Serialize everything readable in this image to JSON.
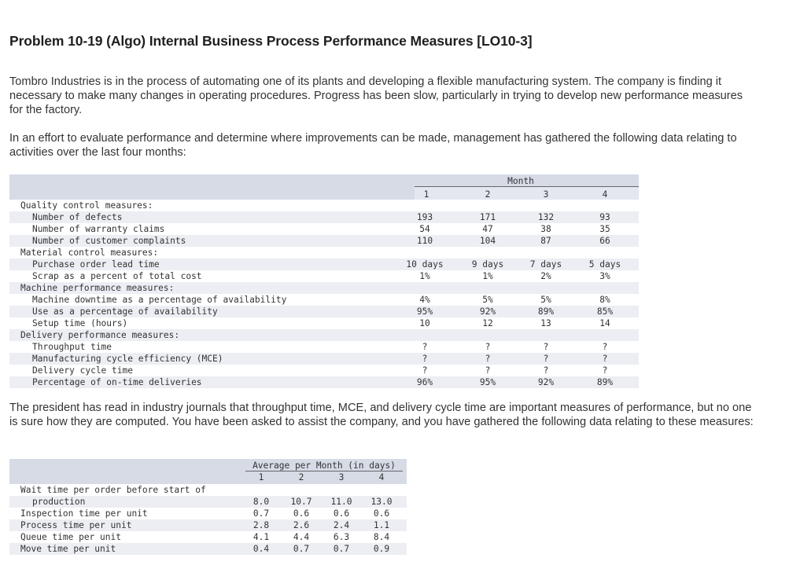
{
  "title": "Problem 10-19 (Algo) Internal Business Process Performance Measures [LO10-3]",
  "para1": "Tombro Industries is in the process of automating one of its plants and developing a flexible manufacturing system. The company is finding it necessary to make many changes in operating procedures. Progress has been slow, particularly in trying to develop new performance measures for the factory.",
  "para2": "In an effort to evaluate performance and determine where improvements can be made, management has gathered the following data relating to activities over the last four months:",
  "para3": "The president has read in industry journals that throughput time, MCE, and delivery cycle time are important measures of performance, but no one is sure how they are computed. You have been asked to assist the company, and you have gathered the following data relating to these measures:",
  "table1": {
    "group_header": "Month",
    "columns": [
      "1",
      "2",
      "3",
      "4"
    ],
    "rows": [
      {
        "label": "Quality control measures:",
        "indent": 0,
        "values": [
          "",
          "",
          "",
          ""
        ]
      },
      {
        "label": "Number of defects",
        "indent": 1,
        "values": [
          "193",
          "171",
          "132",
          "93"
        ]
      },
      {
        "label": "Number of warranty claims",
        "indent": 1,
        "values": [
          "54",
          "47",
          "38",
          "35"
        ]
      },
      {
        "label": "Number of customer complaints",
        "indent": 1,
        "values": [
          "110",
          "104",
          "87",
          "66"
        ]
      },
      {
        "label": "Material control measures:",
        "indent": 0,
        "values": [
          "",
          "",
          "",
          ""
        ]
      },
      {
        "label": "Purchase order lead time",
        "indent": 1,
        "values": [
          "10 days",
          "9 days",
          "7 days",
          "5 days"
        ]
      },
      {
        "label": "Scrap as a percent of total cost",
        "indent": 1,
        "values": [
          "1%",
          "1%",
          "2%",
          "3%"
        ]
      },
      {
        "label": "Machine performance measures:",
        "indent": 0,
        "values": [
          "",
          "",
          "",
          ""
        ]
      },
      {
        "label": "Machine downtime as a percentage of availability",
        "indent": 1,
        "values": [
          "4%",
          "5%",
          "5%",
          "8%"
        ]
      },
      {
        "label": "Use as a percentage of availability",
        "indent": 1,
        "values": [
          "95%",
          "92%",
          "89%",
          "85%"
        ]
      },
      {
        "label": "Setup time (hours)",
        "indent": 1,
        "values": [
          "10",
          "12",
          "13",
          "14"
        ]
      },
      {
        "label": "Delivery performance measures:",
        "indent": 0,
        "values": [
          "",
          "",
          "",
          ""
        ]
      },
      {
        "label": "Throughput time",
        "indent": 1,
        "values": [
          "?",
          "?",
          "?",
          "?"
        ]
      },
      {
        "label": "Manufacturing cycle efficiency (MCE)",
        "indent": 1,
        "values": [
          "?",
          "?",
          "?",
          "?"
        ]
      },
      {
        "label": "Delivery cycle time",
        "indent": 1,
        "values": [
          "?",
          "?",
          "?",
          "?"
        ]
      },
      {
        "label": "Percentage of on-time deliveries",
        "indent": 1,
        "values": [
          "96%",
          "95%",
          "92%",
          "89%"
        ]
      }
    ]
  },
  "table2": {
    "group_header": "Average per Month (in days)",
    "columns": [
      "1",
      "2",
      "3",
      "4"
    ],
    "rows": [
      {
        "label": "Wait time per order before start of",
        "indent": 0,
        "values": [
          "",
          "",
          "",
          ""
        ]
      },
      {
        "label": "production",
        "indent": 1,
        "values": [
          "8.0",
          "10.7",
          "11.0",
          "13.0"
        ]
      },
      {
        "label": "Inspection time per unit",
        "indent": 0,
        "values": [
          "0.7",
          "0.6",
          "0.6",
          "0.6"
        ]
      },
      {
        "label": "Process time per unit",
        "indent": 0,
        "values": [
          "2.8",
          "2.6",
          "2.4",
          "1.1"
        ]
      },
      {
        "label": "Queue time per unit",
        "indent": 0,
        "values": [
          "4.1",
          "4.4",
          "6.3",
          "8.4"
        ]
      },
      {
        "label": "Move time per unit",
        "indent": 0,
        "values": [
          "0.4",
          "0.7",
          "0.7",
          "0.9"
        ]
      }
    ]
  }
}
